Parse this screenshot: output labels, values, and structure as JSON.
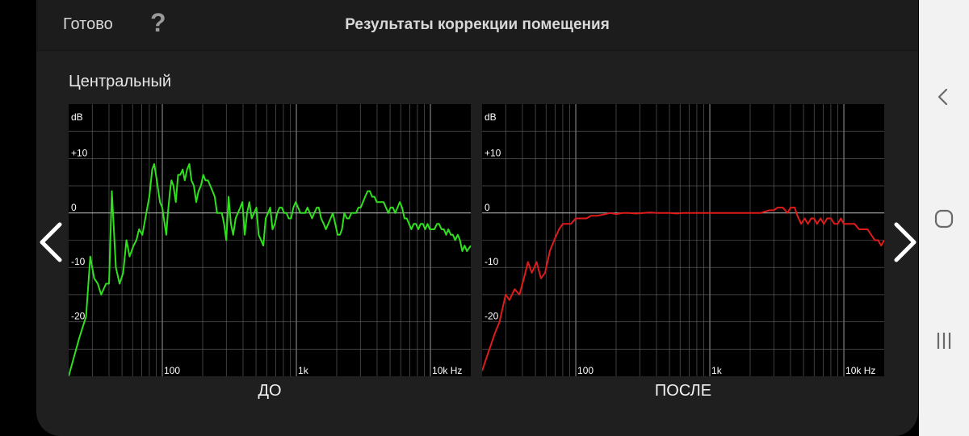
{
  "header": {
    "done_label": "Готово",
    "help_label": "?",
    "title": "Результаты коррекции помещения"
  },
  "channel_label": "Центральный",
  "colors": {
    "before": "#2fe01c",
    "after": "#e01b1b",
    "grid": "#6a6a6a",
    "zero_line": "#bdbdbd"
  },
  "icons": {
    "prev": "chevron-left-icon",
    "next": "chevron-right-icon",
    "nav_back": "back-icon",
    "nav_home": "home-icon",
    "nav_recents": "recents-icon"
  },
  "chart_data": [
    {
      "type": "line",
      "caption": "ДО",
      "ylabel": "dB",
      "x_scale": "log",
      "xlim": [
        20,
        20000
      ],
      "ylim": [
        -30,
        20
      ],
      "y_tick_labels": [
        "+10",
        "0",
        "-10",
        "-20"
      ],
      "x_tick_labels": [
        "100",
        "1k",
        "10k Hz"
      ],
      "grid": true,
      "series": [
        {
          "color": "#2fe01c",
          "points": [
            [
              20,
              -30
            ],
            [
              24,
              -23
            ],
            [
              27,
              -19
            ],
            [
              29,
              -8
            ],
            [
              31,
              -12
            ],
            [
              33,
              -13
            ],
            [
              35,
              -15
            ],
            [
              38,
              -13
            ],
            [
              40,
              -13
            ],
            [
              42,
              4
            ],
            [
              45,
              -10
            ],
            [
              48,
              -13
            ],
            [
              51,
              -11
            ],
            [
              54,
              -5
            ],
            [
              57,
              -8
            ],
            [
              61,
              -6
            ],
            [
              64,
              -5
            ],
            [
              67,
              -3
            ],
            [
              71,
              -4
            ],
            [
              76,
              0
            ],
            [
              80,
              3
            ],
            [
              84,
              8
            ],
            [
              87,
              9
            ],
            [
              91,
              6
            ],
            [
              96,
              2
            ],
            [
              100,
              1
            ],
            [
              104,
              -2
            ],
            [
              107,
              -4
            ],
            [
              110,
              0
            ],
            [
              114,
              4
            ],
            [
              117,
              6
            ],
            [
              121,
              5
            ],
            [
              126,
              2
            ],
            [
              131,
              7
            ],
            [
              136,
              7
            ],
            [
              142,
              8
            ],
            [
              147,
              6
            ],
            [
              153,
              8
            ],
            [
              159,
              9
            ],
            [
              165,
              6
            ],
            [
              172,
              5
            ],
            [
              179,
              2
            ],
            [
              186,
              4
            ],
            [
              194,
              5
            ],
            [
              202,
              7
            ],
            [
              210,
              6
            ],
            [
              219,
              6
            ],
            [
              228,
              5
            ],
            [
              237,
              4
            ],
            [
              246,
              3
            ],
            [
              256,
              0
            ],
            [
              267,
              0
            ],
            [
              278,
              0
            ],
            [
              289,
              -2
            ],
            [
              300,
              -5
            ],
            [
              312,
              3
            ],
            [
              325,
              -2
            ],
            [
              338,
              -4
            ],
            [
              352,
              -1
            ],
            [
              366,
              0
            ],
            [
              381,
              1
            ],
            [
              396,
              2
            ],
            [
              412,
              -4
            ],
            [
              429,
              0
            ],
            [
              446,
              2
            ],
            [
              464,
              -1
            ],
            [
              483,
              0
            ],
            [
              503,
              1
            ],
            [
              523,
              -4
            ],
            [
              545,
              -5
            ],
            [
              567,
              -6
            ],
            [
              590,
              -1
            ],
            [
              614,
              0
            ],
            [
              638,
              1
            ],
            [
              664,
              -3
            ],
            [
              691,
              -2
            ],
            [
              720,
              0
            ],
            [
              749,
              1
            ],
            [
              779,
              1
            ],
            [
              811,
              0
            ],
            [
              843,
              0
            ],
            [
              877,
              -1
            ],
            [
              913,
              -1
            ],
            [
              950,
              1
            ],
            [
              989,
              2
            ],
            [
              1030,
              1
            ],
            [
              1070,
              0
            ],
            [
              1120,
              0
            ],
            [
              1160,
              0
            ],
            [
              1210,
              1
            ],
            [
              1260,
              0
            ],
            [
              1310,
              -1
            ],
            [
              1360,
              0
            ],
            [
              1420,
              1
            ],
            [
              1470,
              1
            ],
            [
              1530,
              -1
            ],
            [
              1600,
              -2
            ],
            [
              1660,
              -3
            ],
            [
              1730,
              -2
            ],
            [
              1800,
              -1
            ],
            [
              1870,
              0
            ],
            [
              1950,
              -2
            ],
            [
              2030,
              -4
            ],
            [
              2110,
              -4
            ],
            [
              2190,
              -3
            ],
            [
              2280,
              0
            ],
            [
              2380,
              -1
            ],
            [
              2470,
              -1
            ],
            [
              2570,
              0
            ],
            [
              2680,
              0
            ],
            [
              2790,
              0
            ],
            [
              2900,
              1
            ],
            [
              3020,
              1
            ],
            [
              3140,
              2
            ],
            [
              3260,
              3
            ],
            [
              3400,
              4
            ],
            [
              3530,
              4
            ],
            [
              3670,
              3
            ],
            [
              3820,
              3
            ],
            [
              3980,
              2
            ],
            [
              4140,
              2
            ],
            [
              4300,
              2
            ],
            [
              4480,
              2
            ],
            [
              4660,
              1
            ],
            [
              4850,
              0
            ],
            [
              5040,
              1
            ],
            [
              5250,
              1
            ],
            [
              5460,
              0
            ],
            [
              5680,
              1
            ],
            [
              5910,
              2
            ],
            [
              6150,
              1
            ],
            [
              6400,
              -1
            ],
            [
              6660,
              -1
            ],
            [
              6930,
              -2
            ],
            [
              7210,
              -3
            ],
            [
              7500,
              -2
            ],
            [
              7800,
              -2
            ],
            [
              8120,
              -3
            ],
            [
              8450,
              -2
            ],
            [
              8790,
              -2
            ],
            [
              9150,
              -3
            ],
            [
              9520,
              -2
            ],
            [
              9900,
              -3
            ],
            [
              10300,
              -3
            ],
            [
              10700,
              -3
            ],
            [
              11200,
              -2
            ],
            [
              11600,
              -2
            ],
            [
              12100,
              -3
            ],
            [
              12600,
              -3
            ],
            [
              13100,
              -4
            ],
            [
              13600,
              -3
            ],
            [
              14200,
              -4
            ],
            [
              14700,
              -4
            ],
            [
              15300,
              -5
            ],
            [
              16000,
              -4
            ],
            [
              16600,
              -5
            ],
            [
              17300,
              -7
            ],
            [
              18000,
              -6
            ],
            [
              18700,
              -7
            ],
            [
              20000,
              -6
            ]
          ]
        }
      ]
    },
    {
      "type": "line",
      "caption": "ПОСЛЕ",
      "ylabel": "dB",
      "x_scale": "log",
      "xlim": [
        20,
        20000
      ],
      "ylim": [
        -30,
        20
      ],
      "y_tick_labels": [
        "+10",
        "0",
        "-10",
        "-20"
      ],
      "x_tick_labels": [
        "100",
        "1k",
        "10k Hz"
      ],
      "grid": true,
      "series": [
        {
          "color": "#e01b1b",
          "points": [
            [
              20,
              -29
            ],
            [
              22,
              -26
            ],
            [
              25,
              -22
            ],
            [
              27,
              -20
            ],
            [
              30,
              -15
            ],
            [
              32,
              -16
            ],
            [
              35,
              -14
            ],
            [
              38,
              -15
            ],
            [
              41,
              -12
            ],
            [
              44,
              -9
            ],
            [
              47,
              -11
            ],
            [
              51,
              -9
            ],
            [
              55,
              -12
            ],
            [
              59,
              -11
            ],
            [
              64,
              -7
            ],
            [
              69,
              -5
            ],
            [
              75,
              -3
            ],
            [
              80,
              -2
            ],
            [
              85,
              -2
            ],
            [
              92,
              -2
            ],
            [
              100,
              -1
            ],
            [
              110,
              -1
            ],
            [
              120,
              -1
            ],
            [
              130,
              -0.5
            ],
            [
              145,
              -0.5
            ],
            [
              160,
              -0.3
            ],
            [
              180,
              0
            ],
            [
              200,
              -0.2
            ],
            [
              225,
              0
            ],
            [
              250,
              0
            ],
            [
              280,
              -0.1
            ],
            [
              320,
              0
            ],
            [
              360,
              0.1
            ],
            [
              400,
              0
            ],
            [
              450,
              0
            ],
            [
              500,
              0
            ],
            [
              560,
              -0.1
            ],
            [
              630,
              0
            ],
            [
              700,
              0
            ],
            [
              800,
              0
            ],
            [
              900,
              0
            ],
            [
              1000,
              0
            ],
            [
              1100,
              0
            ],
            [
              1250,
              0
            ],
            [
              1400,
              0
            ],
            [
              1600,
              0
            ],
            [
              1800,
              0
            ],
            [
              2000,
              0
            ],
            [
              2200,
              0
            ],
            [
              2400,
              0
            ],
            [
              2600,
              0.3
            ],
            [
              2800,
              0.5
            ],
            [
              3000,
              0.5
            ],
            [
              3200,
              1
            ],
            [
              3500,
              1
            ],
            [
              3800,
              0
            ],
            [
              4000,
              1
            ],
            [
              4300,
              1
            ],
            [
              4500,
              -0.5
            ],
            [
              4800,
              -2
            ],
            [
              5100,
              -1
            ],
            [
              5400,
              -2
            ],
            [
              5700,
              -1
            ],
            [
              6000,
              -1
            ],
            [
              6300,
              -2
            ],
            [
              6700,
              -1
            ],
            [
              7100,
              -2
            ],
            [
              7500,
              -1
            ],
            [
              8000,
              -1
            ],
            [
              8500,
              -2
            ],
            [
              9000,
              -2
            ],
            [
              9500,
              -1
            ],
            [
              10000,
              -2
            ],
            [
              11000,
              -2
            ],
            [
              12000,
              -2
            ],
            [
              13000,
              -3
            ],
            [
              14000,
              -3
            ],
            [
              15000,
              -3
            ],
            [
              16000,
              -4
            ],
            [
              17000,
              -5
            ],
            [
              18000,
              -5
            ],
            [
              19000,
              -6
            ],
            [
              20000,
              -5
            ]
          ]
        }
      ]
    }
  ]
}
